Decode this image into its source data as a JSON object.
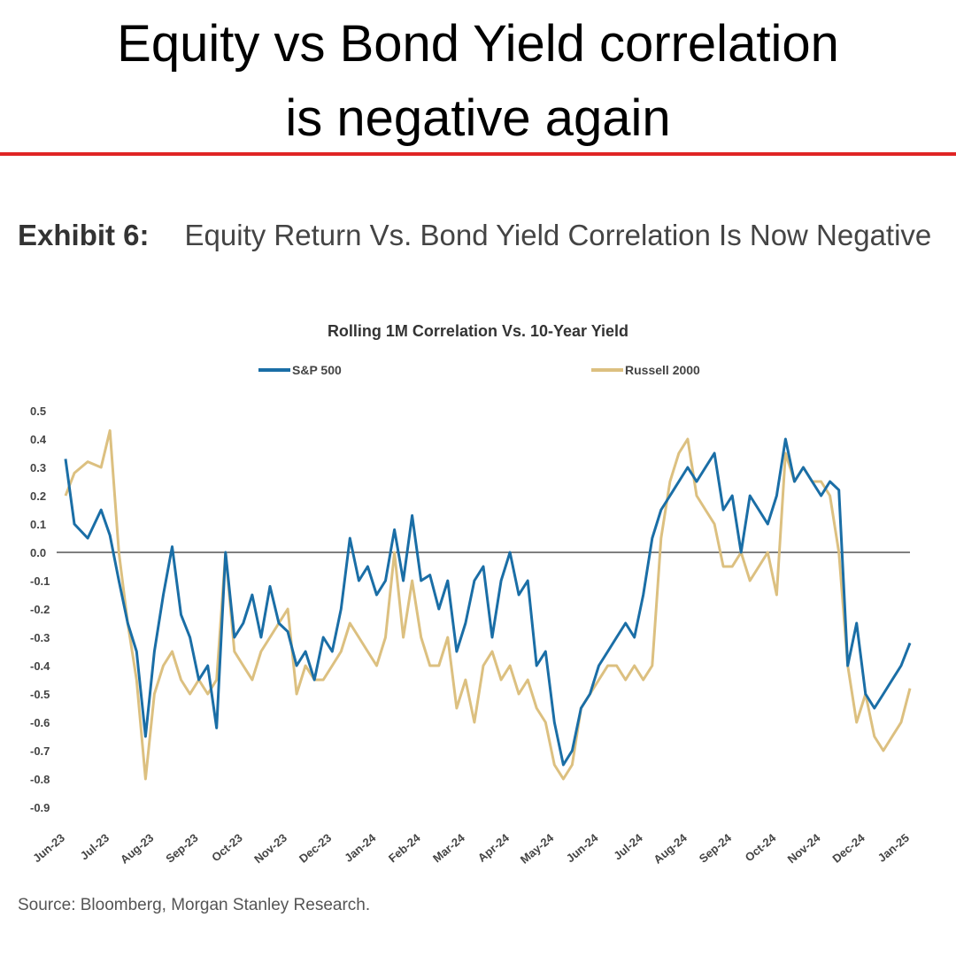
{
  "headline": {
    "line1": "Equity vs Bond Yield correlation",
    "line2": "is negative again"
  },
  "exhibit": {
    "label": "Exhibit 6:",
    "text": "Equity Return Vs. Bond Yield Correlation Is Now Negative"
  },
  "source": "Source: Bloomberg, Morgan Stanley Research.",
  "colors": {
    "accent_rule": "#e02424",
    "sp500": "#1a6ea6",
    "russell2000": "#dcc080",
    "zero_line": "#333333"
  },
  "chart_data": {
    "type": "line",
    "title": "Rolling 1M Correlation Vs. 10-Year Yield",
    "xlabel": "",
    "ylabel": "",
    "ylim": [
      -0.9,
      0.5
    ],
    "yticks": [
      0.5,
      0.4,
      0.3,
      0.2,
      0.1,
      0.0,
      -0.1,
      -0.2,
      -0.3,
      -0.4,
      -0.5,
      -0.6,
      -0.7,
      -0.8,
      -0.9
    ],
    "ytick_labels": [
      "0.5",
      "0.4",
      "0.3",
      "0.2",
      "0.1",
      "0.0",
      "-0.1",
      "-0.2",
      "-0.3",
      "-0.4",
      "-0.5",
      "-0.6",
      "-0.7",
      "-0.8",
      "-0.9"
    ],
    "categories": [
      "Jun-23",
      "Jul-23",
      "Aug-23",
      "Sep-23",
      "Oct-23",
      "Nov-23",
      "Dec-23",
      "Jan-24",
      "Feb-24",
      "Mar-24",
      "Apr-24",
      "May-24",
      "Jun-24",
      "Jul-24",
      "Aug-24",
      "Sep-24",
      "Oct-24",
      "Nov-24",
      "Dec-24",
      "Jan-25"
    ],
    "legend_position": "top",
    "grid": false,
    "reference_line": 0.0,
    "series": [
      {
        "name": "S&P 500",
        "color": "#1a6ea6",
        "x": [
          0,
          0.2,
          0.5,
          0.8,
          1.0,
          1.2,
          1.4,
          1.6,
          1.8,
          2.0,
          2.2,
          2.4,
          2.6,
          2.8,
          3.0,
          3.2,
          3.4,
          3.6,
          3.8,
          4.0,
          4.2,
          4.4,
          4.6,
          4.8,
          5.0,
          5.2,
          5.4,
          5.6,
          5.8,
          6.0,
          6.2,
          6.4,
          6.6,
          6.8,
          7.0,
          7.2,
          7.4,
          7.6,
          7.8,
          8.0,
          8.2,
          8.4,
          8.6,
          8.8,
          9.0,
          9.2,
          9.4,
          9.6,
          9.8,
          10.0,
          10.2,
          10.4,
          10.6,
          10.8,
          11.0,
          11.2,
          11.4,
          11.6,
          11.8,
          12.0,
          12.2,
          12.4,
          12.6,
          12.8,
          13.0,
          13.2,
          13.4,
          13.6,
          13.8,
          14.0,
          14.2,
          14.4,
          14.6,
          14.8,
          15.0,
          15.2,
          15.4,
          15.6,
          15.8,
          16.0,
          16.2,
          16.4,
          16.6,
          16.8,
          17.0,
          17.2,
          17.4,
          17.6,
          17.8,
          18.0,
          18.2,
          18.4,
          18.6,
          18.8,
          19.0
        ],
        "values": [
          0.33,
          0.1,
          0.05,
          0.15,
          0.06,
          -0.1,
          -0.25,
          -0.35,
          -0.65,
          -0.35,
          -0.15,
          0.02,
          -0.22,
          -0.3,
          -0.45,
          -0.4,
          -0.62,
          0.0,
          -0.3,
          -0.25,
          -0.15,
          -0.3,
          -0.12,
          -0.25,
          -0.28,
          -0.4,
          -0.35,
          -0.45,
          -0.3,
          -0.35,
          -0.2,
          0.05,
          -0.1,
          -0.05,
          -0.15,
          -0.1,
          0.08,
          -0.1,
          0.13,
          -0.1,
          -0.08,
          -0.2,
          -0.1,
          -0.35,
          -0.25,
          -0.1,
          -0.05,
          -0.3,
          -0.1,
          0.0,
          -0.15,
          -0.1,
          -0.4,
          -0.35,
          -0.6,
          -0.75,
          -0.7,
          -0.55,
          -0.5,
          -0.4,
          -0.35,
          -0.3,
          -0.25,
          -0.3,
          -0.15,
          0.05,
          0.15,
          0.2,
          0.25,
          0.3,
          0.25,
          0.3,
          0.35,
          0.15,
          0.2,
          0.0,
          0.2,
          0.15,
          0.1,
          0.2,
          0.4,
          0.25,
          0.3,
          0.25,
          0.2,
          0.25,
          0.22,
          -0.4,
          -0.25,
          -0.5,
          -0.55,
          -0.5,
          -0.45,
          -0.4,
          -0.32
        ]
      },
      {
        "name": "Russell 2000",
        "color": "#dcc080",
        "x": [
          0,
          0.2,
          0.5,
          0.8,
          1.0,
          1.2,
          1.4,
          1.6,
          1.8,
          2.0,
          2.2,
          2.4,
          2.6,
          2.8,
          3.0,
          3.2,
          3.4,
          3.6,
          3.8,
          4.0,
          4.2,
          4.4,
          4.6,
          4.8,
          5.0,
          5.2,
          5.4,
          5.6,
          5.8,
          6.0,
          6.2,
          6.4,
          6.6,
          6.8,
          7.0,
          7.2,
          7.4,
          7.6,
          7.8,
          8.0,
          8.2,
          8.4,
          8.6,
          8.8,
          9.0,
          9.2,
          9.4,
          9.6,
          9.8,
          10.0,
          10.2,
          10.4,
          10.6,
          10.8,
          11.0,
          11.2,
          11.4,
          11.6,
          11.8,
          12.0,
          12.2,
          12.4,
          12.6,
          12.8,
          13.0,
          13.2,
          13.4,
          13.6,
          13.8,
          14.0,
          14.2,
          14.4,
          14.6,
          14.8,
          15.0,
          15.2,
          15.4,
          15.6,
          15.8,
          16.0,
          16.2,
          16.4,
          16.6,
          16.8,
          17.0,
          17.2,
          17.4,
          17.6,
          17.8,
          18.0,
          18.2,
          18.4,
          18.6,
          18.8,
          19.0
        ],
        "values": [
          0.2,
          0.28,
          0.32,
          0.3,
          0.43,
          0.0,
          -0.25,
          -0.45,
          -0.8,
          -0.5,
          -0.4,
          -0.35,
          -0.45,
          -0.5,
          -0.45,
          -0.5,
          -0.45,
          0.0,
          -0.35,
          -0.4,
          -0.45,
          -0.35,
          -0.3,
          -0.25,
          -0.2,
          -0.5,
          -0.4,
          -0.45,
          -0.45,
          -0.4,
          -0.35,
          -0.25,
          -0.3,
          -0.35,
          -0.4,
          -0.3,
          0.0,
          -0.3,
          -0.1,
          -0.3,
          -0.4,
          -0.4,
          -0.3,
          -0.55,
          -0.45,
          -0.6,
          -0.4,
          -0.35,
          -0.45,
          -0.4,
          -0.5,
          -0.45,
          -0.55,
          -0.6,
          -0.75,
          -0.8,
          -0.75,
          -0.55,
          -0.5,
          -0.45,
          -0.4,
          -0.4,
          -0.45,
          -0.4,
          -0.45,
          -0.4,
          0.05,
          0.25,
          0.35,
          0.4,
          0.2,
          0.15,
          0.1,
          -0.05,
          -0.05,
          0.0,
          -0.1,
          -0.05,
          0.0,
          -0.15,
          0.35,
          0.25,
          0.3,
          0.25,
          0.25,
          0.2,
          0.0,
          -0.4,
          -0.6,
          -0.5,
          -0.65,
          -0.7,
          -0.65,
          -0.6,
          -0.48
        ]
      }
    ]
  }
}
